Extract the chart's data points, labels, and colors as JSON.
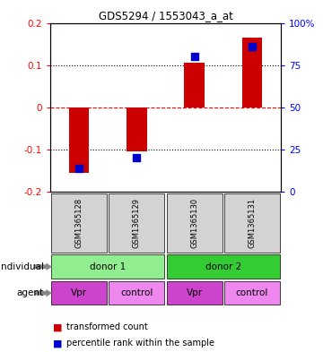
{
  "title": "GDS5294 / 1553043_a_at",
  "samples": [
    "GSM1365128",
    "GSM1365129",
    "GSM1365130",
    "GSM1365131"
  ],
  "transformed_counts": [
    -0.155,
    -0.105,
    0.105,
    0.165
  ],
  "percentile_ranks": [
    0.14,
    0.2,
    0.8,
    0.86
  ],
  "ylim": [
    -0.2,
    0.2
  ],
  "yticks_left": [
    -0.2,
    -0.1,
    0,
    0.1,
    0.2
  ],
  "ytick_labels_left": [
    "-0.2",
    "-0.1",
    "0",
    "0.1",
    "0.2"
  ],
  "ytick_labels_right": [
    "0",
    "25",
    "50",
    "75",
    "100%"
  ],
  "bar_color": "#cc0000",
  "dot_color": "#0000cc",
  "sample_box_color": "#d3d3d3",
  "individual_color_1": "#90ee90",
  "individual_color_2": "#33cc33",
  "agent_color_vpr": "#cc44cc",
  "agent_color_control": "#ee88ee",
  "individual_labels": [
    "donor 1",
    "donor 2"
  ],
  "agent_labels": [
    "Vpr",
    "control",
    "Vpr",
    "control"
  ],
  "legend_bar_label": "transformed count",
  "legend_dot_label": "percentile rank within the sample",
  "individual_row_label": "individual",
  "agent_row_label": "agent",
  "bar_width": 0.35,
  "dot_size": 30
}
